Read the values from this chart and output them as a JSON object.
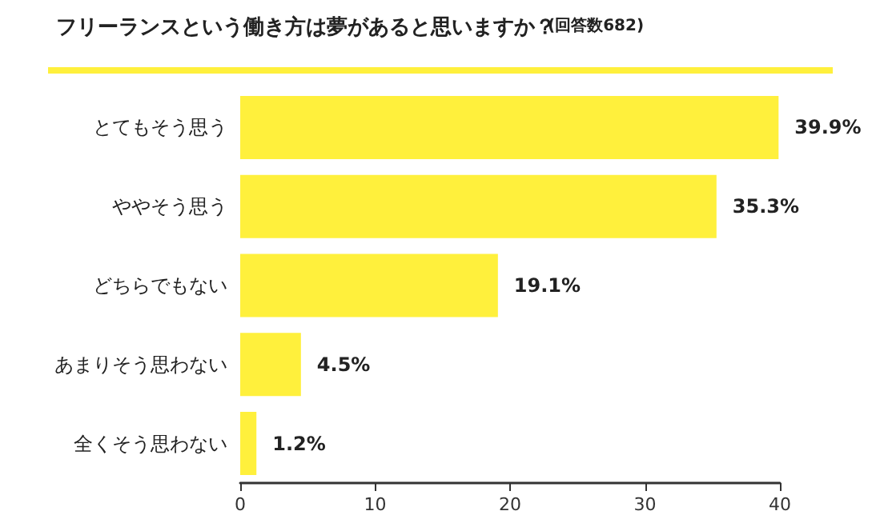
{
  "chart_data": {
    "type": "bar",
    "orientation": "horizontal",
    "title": "フリーランスという働き方は夢があると思いますか？",
    "subtitle": "(回答数682)",
    "categories": [
      "とてもそう思う",
      "ややそう思う",
      "どちらでもない",
      "あまりそう思わない",
      "全くそう思わない"
    ],
    "values": [
      39.9,
      35.3,
      19.1,
      4.5,
      1.2
    ],
    "value_labels": [
      "39.9%",
      "35.3%",
      "19.1%",
      "4.5%",
      "1.2%"
    ],
    "color": "#fff03c",
    "xlim": [
      0,
      40
    ],
    "xticks": [
      0,
      10,
      20,
      30,
      40
    ],
    "grid": false
  }
}
